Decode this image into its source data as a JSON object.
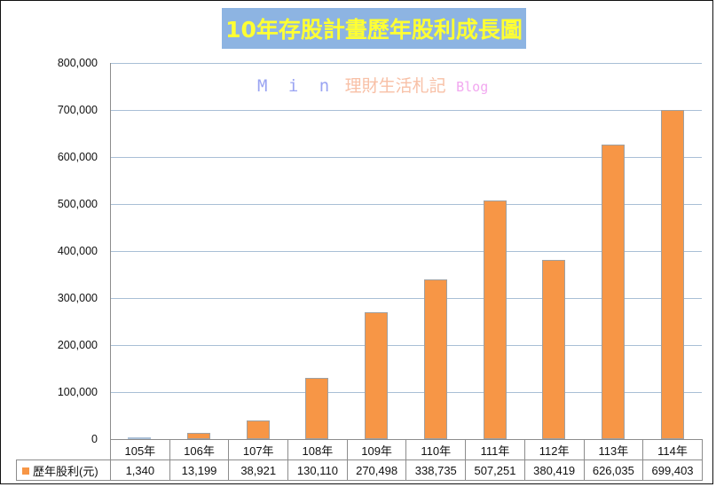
{
  "title": "10年存股計畫歷年股利成長圖",
  "watermark": {
    "part1": "M i n",
    "part2": "理財生活札記",
    "part3": "Blog"
  },
  "colors": {
    "title_bg": "#8db4e2",
    "title_text": "#ffff33",
    "bar": "#f79646",
    "gridline": "#a9bfd6"
  },
  "y_ticks": [
    "800,000",
    "700,000",
    "600,000",
    "500,000",
    "400,000",
    "300,000",
    "200,000",
    "100,000",
    "0"
  ],
  "table": {
    "series_label": "歷年股利(元)",
    "categories": [
      "105年",
      "106年",
      "107年",
      "108年",
      "109年",
      "110年",
      "111年",
      "112年",
      "113年",
      "114年"
    ],
    "values_display": [
      "1,340",
      "13,199",
      "38,921",
      "130,110",
      "270,498",
      "338,735",
      "507,251",
      "380,419",
      "626,035",
      "699,403"
    ]
  },
  "chart_data": {
    "type": "bar",
    "title": "10年存股計畫歷年股利成長圖",
    "categories": [
      "105年",
      "106年",
      "107年",
      "108年",
      "109年",
      "110年",
      "111年",
      "112年",
      "113年",
      "114年"
    ],
    "series": [
      {
        "name": "歷年股利(元)",
        "values": [
          1340,
          13199,
          38921,
          130110,
          270498,
          338735,
          507251,
          380419,
          626035,
          699403
        ],
        "color": "#f79646"
      }
    ],
    "xlabel": "",
    "ylabel": "",
    "ylim": [
      0,
      800000
    ],
    "yticks": [
      0,
      100000,
      200000,
      300000,
      400000,
      500000,
      600000,
      700000,
      800000
    ],
    "grid": true,
    "legend_position": "data-table",
    "data_table": true
  }
}
